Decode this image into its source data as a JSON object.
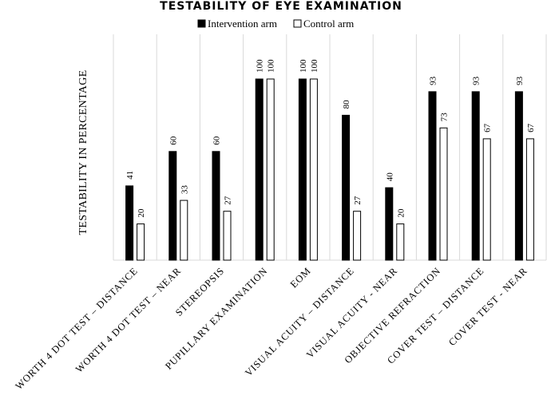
{
  "chart_data": {
    "type": "bar",
    "title": "TESTABILITY OF EYE EXAMINATION",
    "ylabel": "TESTABILITY IN PERCENTAGE",
    "xlabel": "",
    "ylim": [
      0,
      100
    ],
    "legend_position": "top",
    "grid": "vertical category separators",
    "categories": [
      "WORTH 4 DOT TEST – DISTANCE",
      "WORTH 4 DOT TEST – NEAR",
      "STEREOPSIS",
      "PUPILLARY EXAMINATION",
      "EOM",
      "VISUAL ACUITY – DISTANCE",
      "VISUAL ACUITY - NEAR",
      "OBJECTIVE REFRACTION",
      "COVER TEST – DISTANCE",
      "COVER TEST - NEAR"
    ],
    "series": [
      {
        "name": "Intervention arm",
        "color": "#000000",
        "values": [
          41,
          60,
          60,
          100,
          100,
          80,
          40,
          93,
          93,
          93
        ]
      },
      {
        "name": "Control arm",
        "color": "#ffffff",
        "values": [
          20,
          33,
          27,
          100,
          100,
          27,
          20,
          73,
          67,
          67
        ]
      }
    ]
  }
}
